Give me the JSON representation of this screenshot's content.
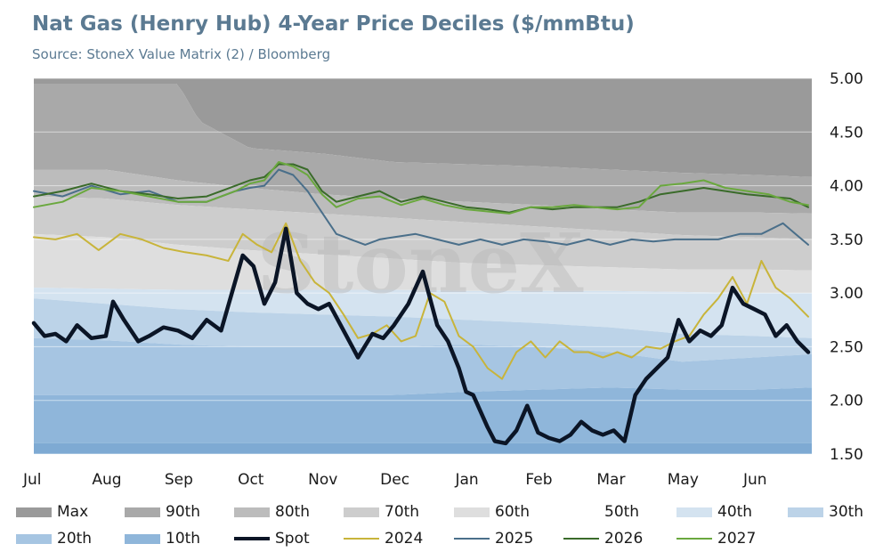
{
  "title": "Nat Gas (Henry Hub) 4-Year Price Deciles ($/mmBtu)",
  "subtitle": "Source: StoneX Value Matrix (2) / Bloomberg",
  "watermark": "StoneX",
  "chart_data": {
    "type": "area",
    "x_months": [
      "Jul",
      "Aug",
      "Sep",
      "Oct",
      "Nov",
      "Dec",
      "Jan",
      "Feb",
      "Mar",
      "May",
      "Jun"
    ],
    "x_month_index": [
      0,
      1,
      2,
      3,
      4,
      5,
      6,
      7,
      8,
      9,
      10
    ],
    "x_axis_months_total": 10.8,
    "ylim": [
      1.5,
      5.0
    ],
    "y_ticks": [
      "5.00",
      "4.50",
      "4.00",
      "3.50",
      "3.00",
      "2.50",
      "2.00",
      "1.50"
    ],
    "y_tick_values": [
      5.0,
      4.5,
      4.0,
      3.5,
      3.0,
      2.5,
      2.0,
      1.5
    ],
    "grid": true,
    "legend_position": "bottom",
    "bands": [
      {
        "name": "Max",
        "color": "#9a9a9a",
        "x": [
          0,
          10.8
        ],
        "values": [
          5.0,
          5.0
        ]
      },
      {
        "name": "90th",
        "color": "#a9a9a9",
        "x": [
          0,
          2,
          2.3,
          3,
          4,
          5,
          6,
          7,
          8,
          9,
          10,
          10.8
        ],
        "values": [
          4.95,
          4.95,
          4.6,
          4.35,
          4.3,
          4.22,
          4.2,
          4.18,
          4.15,
          4.12,
          4.1,
          4.08
        ]
      },
      {
        "name": "80th",
        "color": "#bcbcbc",
        "x": [
          0,
          1,
          2,
          3,
          4,
          5,
          6,
          7,
          8,
          9,
          10,
          10.8
        ],
        "values": [
          4.15,
          4.15,
          4.05,
          3.98,
          3.92,
          3.88,
          3.85,
          3.82,
          3.78,
          3.75,
          3.75,
          3.74
        ]
      },
      {
        "name": "70th",
        "color": "#cdcdcd",
        "x": [
          0,
          1,
          2,
          3,
          4,
          5,
          6,
          7,
          8,
          9,
          10,
          10.8
        ],
        "values": [
          3.9,
          3.88,
          3.82,
          3.78,
          3.74,
          3.7,
          3.66,
          3.62,
          3.58,
          3.54,
          3.52,
          3.5
        ]
      },
      {
        "name": "60th",
        "color": "#dedede",
        "x": [
          0,
          1,
          2,
          3,
          4,
          5,
          6,
          7,
          8,
          9,
          10,
          10.8
        ],
        "values": [
          3.55,
          3.52,
          3.45,
          3.4,
          3.36,
          3.32,
          3.28,
          3.26,
          3.24,
          3.22,
          3.22,
          3.21
        ]
      },
      {
        "name": "50th",
        "color": "#ffffff",
        "x": [
          0,
          1,
          2,
          3,
          4,
          5,
          6,
          7,
          8,
          9,
          10,
          10.8
        ],
        "values": [
          3.05,
          3.04,
          3.03,
          3.03,
          3.03,
          3.03,
          3.02,
          3.02,
          3.02,
          3.01,
          3.0,
          3.0
        ]
      },
      {
        "name": "40th",
        "color": "#d4e3f0",
        "x": [
          0,
          1,
          2,
          3,
          4,
          5,
          6,
          7,
          8,
          9,
          10,
          10.8
        ],
        "values": [
          3.05,
          3.04,
          3.03,
          3.03,
          3.03,
          3.03,
          3.02,
          3.02,
          3.02,
          3.01,
          3.0,
          3.0
        ]
      },
      {
        "name": "30th",
        "color": "#bcd3e8",
        "x": [
          0,
          1,
          2,
          3,
          4,
          5,
          6,
          7,
          8,
          9,
          10,
          10.8
        ],
        "values": [
          2.95,
          2.9,
          2.85,
          2.82,
          2.8,
          2.78,
          2.75,
          2.72,
          2.68,
          2.62,
          2.6,
          2.58
        ]
      },
      {
        "name": "20th",
        "color": "#a6c5e2",
        "x": [
          0,
          1,
          2,
          3,
          4,
          5,
          6,
          7,
          8,
          9,
          10,
          10.8
        ],
        "values": [
          2.58,
          2.56,
          2.52,
          2.5,
          2.5,
          2.5,
          2.52,
          2.5,
          2.45,
          2.36,
          2.4,
          2.43
        ]
      },
      {
        "name": "10th",
        "color": "#8fb6da",
        "x": [
          0,
          1,
          2,
          3,
          4,
          5,
          6,
          7,
          8,
          9,
          10,
          10.8
        ],
        "values": [
          2.05,
          2.05,
          2.05,
          2.05,
          2.05,
          2.05,
          2.08,
          2.1,
          2.12,
          2.1,
          2.1,
          2.12
        ]
      },
      {
        "name": "Min",
        "color": "#7eaad3",
        "x": [
          0,
          10,
          10.5,
          10.8
        ],
        "values": [
          1.6,
          1.6,
          1.6,
          1.6
        ]
      }
    ],
    "series": [
      {
        "name": "Spot",
        "color": "#0b1526",
        "width": 4.5,
        "x": [
          0,
          0.15,
          0.3,
          0.45,
          0.6,
          0.8,
          1.0,
          1.1,
          1.25,
          1.45,
          1.6,
          1.8,
          2.0,
          2.2,
          2.4,
          2.6,
          2.75,
          2.9,
          3.05,
          3.2,
          3.35,
          3.5,
          3.65,
          3.8,
          3.95,
          4.1,
          4.3,
          4.5,
          4.7,
          4.85,
          5.0,
          5.2,
          5.4,
          5.6,
          5.75,
          5.9,
          6.0,
          6.1,
          6.2,
          6.3,
          6.4,
          6.55,
          6.7,
          6.85,
          7.0,
          7.15,
          7.3,
          7.45,
          7.6,
          7.75,
          7.9,
          8.05,
          8.2,
          8.35,
          8.5,
          8.65,
          8.8,
          8.95,
          9.1,
          9.25,
          9.4,
          9.55,
          9.7,
          9.85,
          10.0,
          10.15,
          10.3,
          10.45,
          10.6,
          10.75
        ],
        "values": [
          2.72,
          2.6,
          2.62,
          2.55,
          2.7,
          2.58,
          2.6,
          2.92,
          2.75,
          2.55,
          2.6,
          2.68,
          2.65,
          2.58,
          2.75,
          2.65,
          3.0,
          3.35,
          3.25,
          2.9,
          3.1,
          3.6,
          3.0,
          2.9,
          2.85,
          2.9,
          2.65,
          2.4,
          2.62,
          2.58,
          2.7,
          2.9,
          3.2,
          2.7,
          2.55,
          2.3,
          2.08,
          2.05,
          1.9,
          1.75,
          1.62,
          1.6,
          1.72,
          1.95,
          1.7,
          1.65,
          1.62,
          1.68,
          1.8,
          1.72,
          1.68,
          1.72,
          1.62,
          2.05,
          2.2,
          2.3,
          2.4,
          2.75,
          2.55,
          2.65,
          2.6,
          2.7,
          3.05,
          2.9,
          2.85,
          2.8,
          2.6,
          2.7,
          2.55,
          2.45
        ]
      },
      {
        "name": "2024",
        "color": "#c8b43a",
        "width": 2,
        "x": [
          0,
          0.3,
          0.6,
          0.9,
          1.2,
          1.5,
          1.8,
          2.1,
          2.4,
          2.7,
          2.9,
          3.1,
          3.3,
          3.5,
          3.7,
          3.9,
          4.1,
          4.3,
          4.5,
          4.7,
          4.9,
          5.1,
          5.3,
          5.5,
          5.7,
          5.9,
          6.1,
          6.3,
          6.5,
          6.7,
          6.9,
          7.1,
          7.3,
          7.5,
          7.7,
          7.9,
          8.1,
          8.3,
          8.5,
          8.7,
          8.9,
          9.1,
          9.3,
          9.5,
          9.7,
          9.9,
          10.1,
          10.3,
          10.5,
          10.75
        ],
        "values": [
          3.52,
          3.5,
          3.55,
          3.4,
          3.55,
          3.5,
          3.42,
          3.38,
          3.35,
          3.3,
          3.55,
          3.45,
          3.38,
          3.65,
          3.3,
          3.1,
          3.0,
          2.8,
          2.58,
          2.62,
          2.7,
          2.55,
          2.6,
          3.0,
          2.92,
          2.6,
          2.5,
          2.3,
          2.2,
          2.45,
          2.55,
          2.4,
          2.55,
          2.45,
          2.45,
          2.4,
          2.45,
          2.4,
          2.5,
          2.48,
          2.55,
          2.6,
          2.8,
          2.95,
          3.15,
          2.9,
          3.3,
          3.05,
          2.95,
          2.78
        ]
      },
      {
        "name": "2025",
        "color": "#4a6f8a",
        "width": 2,
        "x": [
          0,
          0.4,
          0.8,
          1.2,
          1.6,
          2.0,
          2.4,
          2.8,
          3.0,
          3.2,
          3.4,
          3.6,
          3.8,
          4.0,
          4.2,
          4.4,
          4.6,
          4.8,
          5.0,
          5.3,
          5.6,
          5.9,
          6.2,
          6.5,
          6.8,
          7.1,
          7.4,
          7.7,
          8.0,
          8.3,
          8.6,
          8.9,
          9.2,
          9.5,
          9.8,
          10.1,
          10.4,
          10.75
        ],
        "values": [
          3.95,
          3.9,
          4.0,
          3.92,
          3.95,
          3.85,
          3.85,
          3.95,
          3.98,
          4.0,
          4.15,
          4.1,
          3.95,
          3.75,
          3.55,
          3.5,
          3.45,
          3.5,
          3.52,
          3.55,
          3.5,
          3.45,
          3.5,
          3.45,
          3.5,
          3.48,
          3.45,
          3.5,
          3.45,
          3.5,
          3.48,
          3.5,
          3.5,
          3.5,
          3.55,
          3.55,
          3.65,
          3.45
        ]
      },
      {
        "name": "2026",
        "color": "#3a6b2a",
        "width": 2,
        "x": [
          0,
          0.4,
          0.8,
          1.2,
          1.6,
          2.0,
          2.4,
          2.8,
          3.0,
          3.2,
          3.4,
          3.6,
          3.8,
          4.0,
          4.2,
          4.5,
          4.8,
          5.1,
          5.4,
          5.7,
          6.0,
          6.3,
          6.6,
          6.9,
          7.2,
          7.5,
          7.8,
          8.1,
          8.4,
          8.7,
          9.0,
          9.3,
          9.6,
          9.9,
          10.2,
          10.5,
          10.75
        ],
        "values": [
          3.9,
          3.95,
          4.02,
          3.95,
          3.92,
          3.88,
          3.9,
          4.0,
          4.05,
          4.08,
          4.2,
          4.2,
          4.15,
          3.95,
          3.85,
          3.9,
          3.95,
          3.85,
          3.9,
          3.85,
          3.8,
          3.78,
          3.75,
          3.8,
          3.78,
          3.8,
          3.8,
          3.8,
          3.85,
          3.92,
          3.95,
          3.98,
          3.95,
          3.92,
          3.9,
          3.88,
          3.8
        ]
      },
      {
        "name": "2027",
        "color": "#6aa83e",
        "width": 2,
        "x": [
          0,
          0.4,
          0.8,
          1.2,
          1.6,
          2.0,
          2.4,
          2.8,
          3.0,
          3.2,
          3.4,
          3.6,
          3.8,
          4.0,
          4.2,
          4.5,
          4.8,
          5.1,
          5.4,
          5.7,
          6.0,
          6.3,
          6.6,
          6.9,
          7.2,
          7.5,
          7.8,
          8.1,
          8.4,
          8.7,
          9.0,
          9.3,
          9.6,
          9.9,
          10.2,
          10.5,
          10.75
        ],
        "values": [
          3.8,
          3.85,
          3.98,
          3.95,
          3.9,
          3.85,
          3.85,
          3.95,
          4.02,
          4.05,
          4.22,
          4.18,
          4.1,
          3.92,
          3.8,
          3.88,
          3.9,
          3.82,
          3.88,
          3.82,
          3.78,
          3.76,
          3.74,
          3.8,
          3.8,
          3.82,
          3.8,
          3.78,
          3.8,
          4.0,
          4.02,
          4.05,
          3.98,
          3.95,
          3.92,
          3.85,
          3.82
        ]
      }
    ]
  },
  "legend": [
    {
      "label": "Max",
      "type": "swatch",
      "color": "#9a9a9a"
    },
    {
      "label": "90th",
      "type": "swatch",
      "color": "#a9a9a9"
    },
    {
      "label": "80th",
      "type": "swatch",
      "color": "#bcbcbc"
    },
    {
      "label": "70th",
      "type": "swatch",
      "color": "#cdcdcd"
    },
    {
      "label": "60th",
      "type": "swatch",
      "color": "#dedede"
    },
    {
      "label": "50th",
      "type": "swatch",
      "color": "#ffffff"
    },
    {
      "label": "40th",
      "type": "swatch",
      "color": "#d4e3f0"
    },
    {
      "label": "30th",
      "type": "swatch",
      "color": "#bcd3e8"
    },
    {
      "label": "20th",
      "type": "swatch",
      "color": "#a6c5e2"
    },
    {
      "label": "10th",
      "type": "swatch",
      "color": "#8fb6da"
    },
    {
      "label": "Spot",
      "type": "line",
      "color": "#0b1526"
    },
    {
      "label": "2024",
      "type": "line",
      "color": "#c8b43a"
    },
    {
      "label": "2025",
      "type": "line",
      "color": "#4a6f8a"
    },
    {
      "label": "2026",
      "type": "line",
      "color": "#3a6b2a"
    },
    {
      "label": "2027",
      "type": "line",
      "color": "#6aa83e"
    }
  ]
}
